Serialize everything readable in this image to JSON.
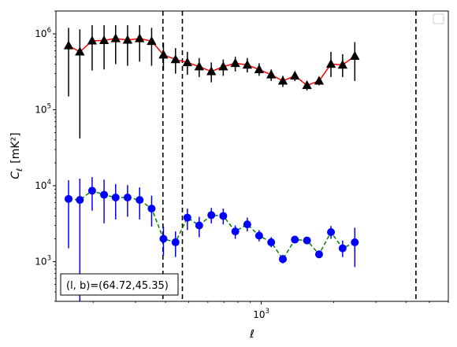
{
  "chart_data": {
    "type": "scatter",
    "xlabel": "ℓ",
    "ylabel_main": "C",
    "ylabel_sub": "ℓ",
    "ylabel_unit": "[mK²]",
    "xscale": "log",
    "yscale": "log",
    "xlim": [
      140,
      6000
    ],
    "ylim": [
      300,
      2000000
    ],
    "x_tick_labels": [
      {
        "value": 1000,
        "base": "10",
        "exp": "3"
      }
    ],
    "y_tick_labels": [
      {
        "value": 1000,
        "base": "10",
        "exp": "3"
      },
      {
        "value": 10000,
        "base": "10",
        "exp": "4"
      },
      {
        "value": 100000,
        "base": "10",
        "exp": "5"
      },
      {
        "value": 1000000,
        "base": "10",
        "exp": "6"
      }
    ],
    "grid": false,
    "legend": "top-right (empty)",
    "annotation": "(l, b)=(64.72,45.35)",
    "vlines": [
      {
        "x": 390,
        "style": "dashed",
        "color": "#000000"
      },
      {
        "x": 470,
        "style": "dashed",
        "color": "#000000"
      },
      {
        "x": 4400,
        "style": "dashed",
        "color": "#000000"
      }
    ],
    "series": [
      {
        "marker": "triangle",
        "marker_color": "#000000",
        "line_color": "#ff0000",
        "line_style": "solid",
        "points": [
          {
            "x": 158,
            "y": 700000,
            "lo": 150000,
            "hi": 1200000
          },
          {
            "x": 176,
            "y": 580000,
            "lo": 42000,
            "hi": 1150000
          },
          {
            "x": 198,
            "y": 810000,
            "lo": 330000,
            "hi": 1300000
          },
          {
            "x": 222,
            "y": 820000,
            "lo": 340000,
            "hi": 1300000
          },
          {
            "x": 248,
            "y": 870000,
            "lo": 400000,
            "hi": 1300000
          },
          {
            "x": 278,
            "y": 830000,
            "lo": 380000,
            "hi": 1300000
          },
          {
            "x": 312,
            "y": 870000,
            "lo": 430000,
            "hi": 1300000
          },
          {
            "x": 350,
            "y": 800000,
            "lo": 380000,
            "hi": 1200000
          },
          {
            "x": 392,
            "y": 530000,
            "lo": 330000,
            "hi": 760000
          },
          {
            "x": 440,
            "y": 460000,
            "lo": 300000,
            "hi": 650000
          },
          {
            "x": 493,
            "y": 420000,
            "lo": 290000,
            "hi": 580000
          },
          {
            "x": 552,
            "y": 370000,
            "lo": 270000,
            "hi": 480000
          },
          {
            "x": 620,
            "y": 320000,
            "lo": 230000,
            "hi": 420000
          },
          {
            "x": 695,
            "y": 370000,
            "lo": 280000,
            "hi": 460000
          },
          {
            "x": 780,
            "y": 410000,
            "lo": 320000,
            "hi": 500000
          },
          {
            "x": 875,
            "y": 390000,
            "lo": 310000,
            "hi": 480000
          },
          {
            "x": 980,
            "y": 340000,
            "lo": 280000,
            "hi": 410000
          },
          {
            "x": 1100,
            "y": 290000,
            "lo": 240000,
            "hi": 340000
          },
          {
            "x": 1230,
            "y": 240000,
            "lo": 200000,
            "hi": 280000
          },
          {
            "x": 1380,
            "y": 280000,
            "lo": 240000,
            "hi": 320000
          },
          {
            "x": 1550,
            "y": 210000,
            "lo": 180000,
            "hi": 240000
          },
          {
            "x": 1740,
            "y": 240000,
            "lo": 210000,
            "hi": 270000
          },
          {
            "x": 1950,
            "y": 400000,
            "lo": 270000,
            "hi": 580000
          },
          {
            "x": 2180,
            "y": 390000,
            "lo": 270000,
            "hi": 540000
          },
          {
            "x": 2450,
            "y": 510000,
            "lo": 240000,
            "hi": 780000
          }
        ]
      },
      {
        "marker": "circle",
        "marker_color": "#0000ff",
        "line_color": "#008000",
        "line_style": "dashed",
        "points": [
          {
            "x": 158,
            "y": 6700,
            "lo": 1500,
            "hi": 11800
          },
          {
            "x": 176,
            "y": 6500,
            "lo": 130,
            "hi": 12400
          },
          {
            "x": 198,
            "y": 8600,
            "lo": 4700,
            "hi": 13000
          },
          {
            "x": 222,
            "y": 7600,
            "lo": 3200,
            "hi": 12000
          },
          {
            "x": 248,
            "y": 7000,
            "lo": 3600,
            "hi": 10500
          },
          {
            "x": 278,
            "y": 7000,
            "lo": 3900,
            "hi": 10200
          },
          {
            "x": 312,
            "y": 6500,
            "lo": 3600,
            "hi": 9500
          },
          {
            "x": 350,
            "y": 5000,
            "lo": 2900,
            "hi": 7400
          },
          {
            "x": 392,
            "y": 2000,
            "lo": 1200,
            "hi": 2900
          },
          {
            "x": 440,
            "y": 1800,
            "lo": 1150,
            "hi": 2500
          },
          {
            "x": 493,
            "y": 3800,
            "lo": 2600,
            "hi": 5000
          },
          {
            "x": 552,
            "y": 3000,
            "lo": 2100,
            "hi": 3900
          },
          {
            "x": 620,
            "y": 4100,
            "lo": 3200,
            "hi": 5100
          },
          {
            "x": 695,
            "y": 4000,
            "lo": 3100,
            "hi": 5000
          },
          {
            "x": 780,
            "y": 2500,
            "lo": 2000,
            "hi": 3000
          },
          {
            "x": 875,
            "y": 3100,
            "lo": 2500,
            "hi": 3800
          },
          {
            "x": 980,
            "y": 2200,
            "lo": 1850,
            "hi": 2600
          },
          {
            "x": 1100,
            "y": 1800,
            "lo": 1550,
            "hi": 2100
          },
          {
            "x": 1230,
            "y": 1080,
            "lo": 950,
            "hi": 1230
          },
          {
            "x": 1380,
            "y": 1950,
            "lo": 1750,
            "hi": 2150
          },
          {
            "x": 1550,
            "y": 1900,
            "lo": 1700,
            "hi": 2100
          },
          {
            "x": 1740,
            "y": 1250,
            "lo": 1120,
            "hi": 1400
          },
          {
            "x": 1950,
            "y": 2450,
            "lo": 2000,
            "hi": 2950
          },
          {
            "x": 2180,
            "y": 1500,
            "lo": 1150,
            "hi": 1900
          },
          {
            "x": 2450,
            "y": 1800,
            "lo": 850,
            "hi": 2800
          }
        ]
      }
    ]
  }
}
